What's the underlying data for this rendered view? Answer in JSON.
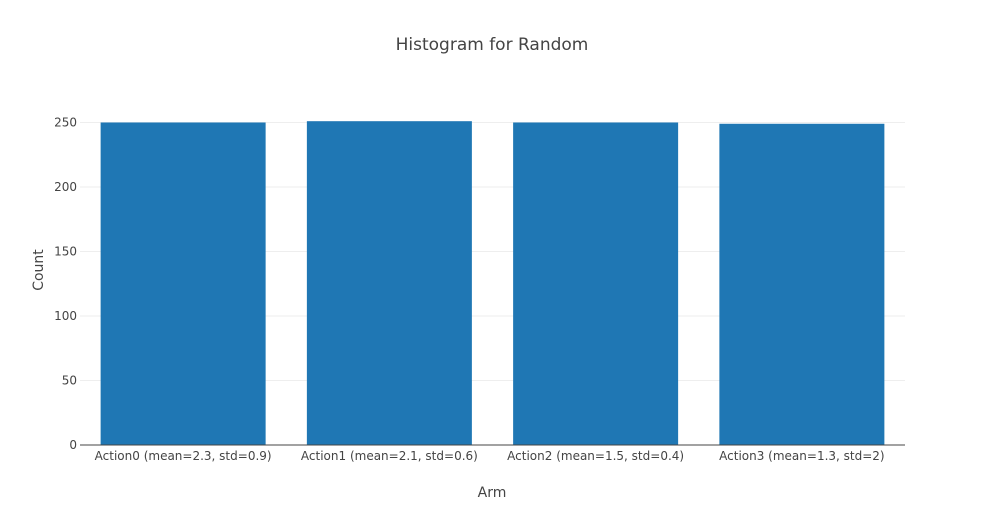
{
  "chart_data": {
    "type": "bar",
    "title": "Histogram for Random",
    "xlabel": "Arm",
    "ylabel": "Count",
    "categories": [
      "Action0 (mean=2.3, std=0.9)",
      "Action1 (mean=2.1, std=0.6)",
      "Action2 (mean=1.5, std=0.4)",
      "Action3 (mean=1.3, std=2)"
    ],
    "values": [
      250,
      251,
      250,
      249
    ],
    "ylim": [
      0,
      262
    ],
    "yticks": [
      0,
      50,
      100,
      150,
      200,
      250
    ],
    "grid": true,
    "legend": "none",
    "colors": {
      "bar": "#1f77b4",
      "grid": "#eeeeee",
      "axis_line": "#444444",
      "text": "#444444"
    }
  }
}
